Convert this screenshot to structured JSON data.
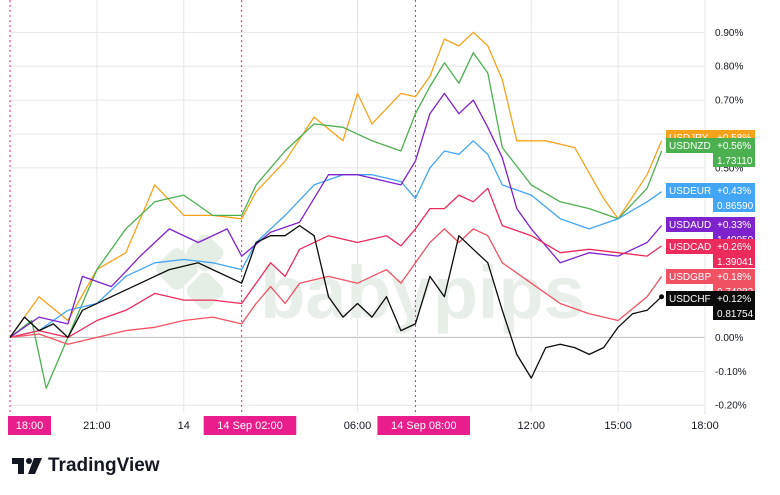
{
  "brand": {
    "name": "TradingView",
    "watermark": "babypips"
  },
  "colors": {
    "USDJPY": "#f7a21b",
    "USDNZD": "#4caf50",
    "USDEUR": "#42a5f5",
    "USDAUD": "#7e22ce",
    "USDCAD": "#ec2a5b",
    "USDGBP": "#f05263",
    "USDCHF": "#0b0b0b",
    "session_marker": "#e91e8c",
    "grid": "#e6e6e6",
    "zero_line": "#bdbdbd",
    "watermark": "#e4eee4"
  },
  "chart_data": {
    "type": "line",
    "title": "",
    "xlabel": "",
    "ylabel": "",
    "ylim": [
      -0.22,
      0.96
    ],
    "yticks": [
      "0.90%",
      "0.80%",
      "0.70%",
      "0.60%",
      "0.50%",
      "0.00%",
      "-0.10%",
      "-0.20%"
    ],
    "ytick_values": [
      0.9,
      0.8,
      0.7,
      0.6,
      0.5,
      0.0,
      -0.1,
      -0.2
    ],
    "x_index_range": [
      0,
      96
    ],
    "xticks": [
      {
        "label": "21:00",
        "x": 12
      },
      {
        "label": "14",
        "x": 24
      },
      {
        "label": "06:00",
        "x": 48
      },
      {
        "label": "12:00",
        "x": 72
      },
      {
        "label": "15:00",
        "x": 84
      },
      {
        "label": "18:00",
        "x": 96
      }
    ],
    "session_markers": [
      {
        "label": "18:00",
        "x": 0
      },
      {
        "label": "14 Sep  02:00",
        "x": 32
      },
      {
        "label": "14 Sep  08:00",
        "x": 56
      }
    ],
    "series": [
      {
        "name": "USDJPY",
        "last": "+0.58%",
        "price": "1.73110",
        "points": [
          [
            0,
            0.0
          ],
          [
            4,
            0.12
          ],
          [
            8,
            0.05
          ],
          [
            12,
            0.2
          ],
          [
            16,
            0.25
          ],
          [
            20,
            0.45
          ],
          [
            24,
            0.36
          ],
          [
            28,
            0.36
          ],
          [
            32,
            0.35
          ],
          [
            34,
            0.43
          ],
          [
            38,
            0.52
          ],
          [
            42,
            0.65
          ],
          [
            46,
            0.58
          ],
          [
            48,
            0.72
          ],
          [
            50,
            0.63
          ],
          [
            54,
            0.72
          ],
          [
            56,
            0.71
          ],
          [
            58,
            0.77
          ],
          [
            60,
            0.88
          ],
          [
            62,
            0.86
          ],
          [
            64,
            0.9
          ],
          [
            66,
            0.86
          ],
          [
            68,
            0.76
          ],
          [
            70,
            0.58
          ],
          [
            74,
            0.58
          ],
          [
            78,
            0.56
          ],
          [
            82,
            0.41
          ],
          [
            84,
            0.35
          ],
          [
            88,
            0.48
          ],
          [
            90,
            0.58
          ]
        ]
      },
      {
        "name": "USDNZD",
        "last": "+0.56%",
        "price": "1.73110",
        "points": [
          [
            0,
            0.0
          ],
          [
            3,
            0.05
          ],
          [
            5,
            -0.15
          ],
          [
            8,
            0.0
          ],
          [
            12,
            0.2
          ],
          [
            16,
            0.32
          ],
          [
            20,
            0.4
          ],
          [
            24,
            0.42
          ],
          [
            28,
            0.36
          ],
          [
            32,
            0.36
          ],
          [
            34,
            0.45
          ],
          [
            38,
            0.55
          ],
          [
            42,
            0.63
          ],
          [
            46,
            0.62
          ],
          [
            50,
            0.58
          ],
          [
            54,
            0.55
          ],
          [
            56,
            0.66
          ],
          [
            58,
            0.74
          ],
          [
            60,
            0.81
          ],
          [
            62,
            0.75
          ],
          [
            64,
            0.84
          ],
          [
            66,
            0.78
          ],
          [
            68,
            0.56
          ],
          [
            72,
            0.45
          ],
          [
            76,
            0.4
          ],
          [
            80,
            0.38
          ],
          [
            84,
            0.35
          ],
          [
            88,
            0.44
          ],
          [
            90,
            0.55
          ]
        ]
      },
      {
        "name": "USDEUR",
        "last": "+0.43%",
        "price": "0.86590",
        "points": [
          [
            0,
            0.0
          ],
          [
            4,
            0.02
          ],
          [
            8,
            0.08
          ],
          [
            12,
            0.1
          ],
          [
            16,
            0.18
          ],
          [
            20,
            0.22
          ],
          [
            24,
            0.23
          ],
          [
            28,
            0.22
          ],
          [
            32,
            0.2
          ],
          [
            34,
            0.28
          ],
          [
            38,
            0.36
          ],
          [
            42,
            0.45
          ],
          [
            46,
            0.48
          ],
          [
            50,
            0.48
          ],
          [
            54,
            0.46
          ],
          [
            56,
            0.41
          ],
          [
            58,
            0.5
          ],
          [
            60,
            0.55
          ],
          [
            62,
            0.54
          ],
          [
            64,
            0.58
          ],
          [
            66,
            0.54
          ],
          [
            68,
            0.45
          ],
          [
            72,
            0.42
          ],
          [
            76,
            0.35
          ],
          [
            80,
            0.32
          ],
          [
            84,
            0.35
          ],
          [
            88,
            0.4
          ],
          [
            90,
            0.43
          ]
        ]
      },
      {
        "name": "USDAUD",
        "last": "+0.33%",
        "price": "1.40050",
        "points": [
          [
            0,
            0.0
          ],
          [
            4,
            0.06
          ],
          [
            8,
            0.04
          ],
          [
            10,
            0.18
          ],
          [
            14,
            0.15
          ],
          [
            18,
            0.24
          ],
          [
            22,
            0.32
          ],
          [
            26,
            0.28
          ],
          [
            30,
            0.32
          ],
          [
            32,
            0.24
          ],
          [
            36,
            0.31
          ],
          [
            40,
            0.34
          ],
          [
            44,
            0.48
          ],
          [
            48,
            0.48
          ],
          [
            52,
            0.46
          ],
          [
            54,
            0.45
          ],
          [
            56,
            0.52
          ],
          [
            58,
            0.66
          ],
          [
            60,
            0.72
          ],
          [
            62,
            0.66
          ],
          [
            64,
            0.7
          ],
          [
            66,
            0.62
          ],
          [
            68,
            0.53
          ],
          [
            70,
            0.38
          ],
          [
            72,
            0.32
          ],
          [
            76,
            0.22
          ],
          [
            80,
            0.25
          ],
          [
            84,
            0.24
          ],
          [
            88,
            0.28
          ],
          [
            90,
            0.33
          ]
        ]
      },
      {
        "name": "USDCAD",
        "last": "+0.26%",
        "price": "1.39041",
        "points": [
          [
            0,
            0.0
          ],
          [
            4,
            0.02
          ],
          [
            8,
            0.0
          ],
          [
            12,
            0.05
          ],
          [
            16,
            0.08
          ],
          [
            20,
            0.13
          ],
          [
            24,
            0.11
          ],
          [
            28,
            0.11
          ],
          [
            32,
            0.1
          ],
          [
            34,
            0.16
          ],
          [
            36,
            0.22
          ],
          [
            38,
            0.18
          ],
          [
            40,
            0.26
          ],
          [
            44,
            0.3
          ],
          [
            48,
            0.28
          ],
          [
            52,
            0.3
          ],
          [
            54,
            0.27
          ],
          [
            56,
            0.32
          ],
          [
            58,
            0.38
          ],
          [
            60,
            0.38
          ],
          [
            62,
            0.42
          ],
          [
            64,
            0.4
          ],
          [
            66,
            0.44
          ],
          [
            68,
            0.33
          ],
          [
            72,
            0.3
          ],
          [
            76,
            0.25
          ],
          [
            80,
            0.26
          ],
          [
            84,
            0.25
          ],
          [
            88,
            0.24
          ],
          [
            90,
            0.27
          ]
        ]
      },
      {
        "name": "USDGBP",
        "last": "+0.18%",
        "price": "0.74082",
        "points": [
          [
            0,
            0.0
          ],
          [
            4,
            0.01
          ],
          [
            8,
            -0.02
          ],
          [
            12,
            0.0
          ],
          [
            16,
            0.02
          ],
          [
            20,
            0.03
          ],
          [
            24,
            0.05
          ],
          [
            28,
            0.06
          ],
          [
            32,
            0.04
          ],
          [
            34,
            0.1
          ],
          [
            36,
            0.15
          ],
          [
            38,
            0.1
          ],
          [
            40,
            0.16
          ],
          [
            44,
            0.18
          ],
          [
            48,
            0.16
          ],
          [
            52,
            0.2
          ],
          [
            54,
            0.16
          ],
          [
            56,
            0.22
          ],
          [
            58,
            0.28
          ],
          [
            60,
            0.32
          ],
          [
            62,
            0.28
          ],
          [
            64,
            0.32
          ],
          [
            66,
            0.3
          ],
          [
            68,
            0.22
          ],
          [
            72,
            0.16
          ],
          [
            76,
            0.1
          ],
          [
            80,
            0.07
          ],
          [
            84,
            0.05
          ],
          [
            88,
            0.12
          ],
          [
            90,
            0.18
          ]
        ]
      },
      {
        "name": "USDCHF",
        "last": "+0.12%",
        "price": "0.81754",
        "points": [
          [
            0,
            0.0
          ],
          [
            2,
            0.06
          ],
          [
            4,
            0.02
          ],
          [
            6,
            0.04
          ],
          [
            8,
            0.0
          ],
          [
            10,
            0.08
          ],
          [
            14,
            0.12
          ],
          [
            18,
            0.16
          ],
          [
            22,
            0.2
          ],
          [
            26,
            0.22
          ],
          [
            28,
            0.2
          ],
          [
            32,
            0.16
          ],
          [
            34,
            0.28
          ],
          [
            36,
            0.3
          ],
          [
            38,
            0.3
          ],
          [
            40,
            0.33
          ],
          [
            42,
            0.3
          ],
          [
            44,
            0.12
          ],
          [
            46,
            0.06
          ],
          [
            48,
            0.1
          ],
          [
            50,
            0.06
          ],
          [
            52,
            0.12
          ],
          [
            54,
            0.02
          ],
          [
            56,
            0.04
          ],
          [
            58,
            0.18
          ],
          [
            60,
            0.12
          ],
          [
            62,
            0.3
          ],
          [
            64,
            0.26
          ],
          [
            66,
            0.22
          ],
          [
            68,
            0.08
          ],
          [
            70,
            -0.05
          ],
          [
            72,
            -0.12
          ],
          [
            74,
            -0.03
          ],
          [
            76,
            -0.02
          ],
          [
            78,
            -0.03
          ],
          [
            80,
            -0.05
          ],
          [
            82,
            -0.03
          ],
          [
            84,
            0.03
          ],
          [
            86,
            0.07
          ],
          [
            88,
            0.08
          ],
          [
            90,
            0.12
          ]
        ]
      }
    ],
    "grid": true,
    "legend_position": "right"
  }
}
